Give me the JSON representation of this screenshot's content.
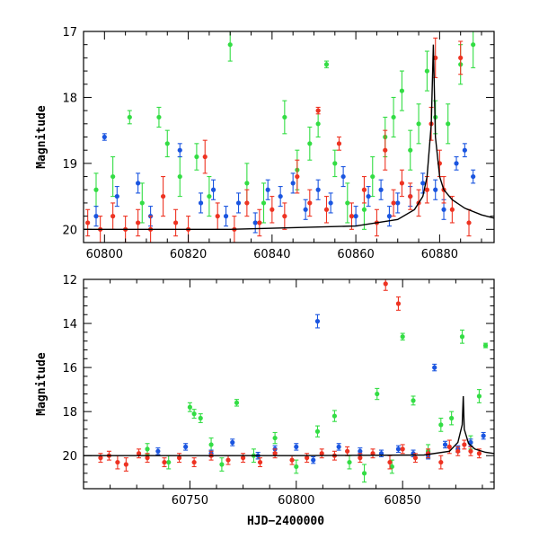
{
  "chart_data": [
    {
      "type": "scatter",
      "title": "",
      "xlabel": "",
      "ylabel": "Magnitude",
      "xlim": [
        60795,
        60893
      ],
      "ylim": [
        20.2,
        17.0
      ],
      "y_inverted": true,
      "xticks": [
        60800,
        60820,
        60840,
        60860,
        60880
      ],
      "yticks": [
        17,
        18,
        19,
        20
      ],
      "colors": {
        "blue": "#1a55e0",
        "green": "#33dd44",
        "red": "#ee3322"
      },
      "series": [
        {
          "color": "#33dd44",
          "x": [
            60798,
            60802,
            60806,
            60809,
            60813,
            60815,
            60818,
            60822,
            60825,
            60830,
            60834,
            60838,
            60843,
            60846,
            60849,
            60851,
            60853,
            60855,
            60858,
            60862,
            60864,
            60867,
            60869,
            60871,
            60873,
            60875,
            60877,
            60879,
            60882,
            60885,
            60888
          ],
          "y": [
            19.4,
            19.2,
            18.3,
            19.6,
            18.3,
            18.7,
            19.2,
            18.9,
            19.5,
            17.2,
            19.3,
            19.6,
            18.3,
            19.1,
            18.7,
            18.4,
            17.5,
            19.0,
            19.6,
            19.7,
            19.2,
            18.6,
            18.3,
            17.9,
            18.8,
            18.4,
            17.6,
            18.3,
            18.4,
            17.5,
            17.2
          ],
          "err": [
            0.25,
            0.3,
            0.1,
            0.3,
            0.15,
            0.2,
            0.3,
            0.2,
            0.3,
            0.25,
            0.3,
            0.3,
            0.25,
            0.3,
            0.25,
            0.2,
            0.05,
            0.2,
            0.3,
            0.3,
            0.3,
            0.3,
            0.3,
            0.3,
            0.3,
            0.3,
            0.3,
            0.25,
            0.3,
            0.3,
            0.35
          ]
        },
        {
          "color": "#1a55e0",
          "x": [
            60798,
            60800,
            60803,
            60808,
            60811,
            60818,
            60823,
            60826,
            60829,
            60832,
            60836,
            60839,
            60842,
            60845,
            60848,
            60851,
            60854,
            60857,
            60860,
            60863,
            60866,
            60868,
            60870,
            60873,
            60876,
            60879,
            60881,
            60884,
            60886,
            60888
          ],
          "y": [
            19.8,
            18.6,
            19.5,
            19.3,
            19.8,
            18.8,
            19.6,
            19.4,
            19.8,
            19.6,
            19.9,
            19.4,
            19.5,
            19.3,
            19.7,
            19.4,
            19.6,
            19.2,
            19.8,
            19.5,
            19.4,
            19.8,
            19.6,
            19.5,
            19.3,
            19.4,
            19.7,
            19.0,
            18.8,
            19.2
          ],
          "err": [
            0.15,
            0.05,
            0.15,
            0.15,
            0.15,
            0.1,
            0.15,
            0.15,
            0.15,
            0.15,
            0.15,
            0.15,
            0.15,
            0.15,
            0.15,
            0.15,
            0.15,
            0.15,
            0.15,
            0.15,
            0.15,
            0.15,
            0.15,
            0.15,
            0.15,
            0.15,
            0.15,
            0.1,
            0.1,
            0.1
          ]
        },
        {
          "color": "#ee3322",
          "x": [
            60796,
            60799,
            60802,
            60805,
            60808,
            60811,
            60814,
            60817,
            60820,
            60824,
            60827,
            60831,
            60834,
            60837,
            60840,
            60843,
            60846,
            60849,
            60851,
            60853,
            60856,
            60859,
            60862,
            60865,
            60867,
            60869,
            60871,
            60873,
            60875,
            60877,
            60878,
            60879,
            60880,
            60881,
            60883,
            60885,
            60887
          ],
          "y": [
            19.9,
            20.0,
            19.8,
            20.0,
            19.9,
            20.0,
            19.5,
            19.9,
            20.0,
            18.9,
            19.8,
            20.0,
            19.6,
            19.9,
            19.7,
            19.8,
            19.2,
            19.6,
            18.2,
            19.7,
            18.7,
            19.8,
            19.4,
            19.9,
            18.8,
            19.6,
            19.3,
            19.5,
            19.6,
            19.4,
            18.4,
            17.4,
            19.0,
            19.4,
            19.7,
            17.4,
            19.9
          ],
          "err": [
            0.2,
            0.2,
            0.2,
            0.2,
            0.2,
            0.2,
            0.3,
            0.2,
            0.2,
            0.25,
            0.2,
            0.2,
            0.2,
            0.2,
            0.2,
            0.2,
            0.25,
            0.2,
            0.05,
            0.2,
            0.1,
            0.2,
            0.2,
            0.2,
            0.3,
            0.2,
            0.2,
            0.2,
            0.2,
            0.2,
            0.25,
            0.3,
            0.2,
            0.2,
            0.2,
            0.25,
            0.2
          ]
        }
      ],
      "model_curve": {
        "x": [
          60795,
          60830,
          60860,
          60870,
          60874,
          60876,
          60877,
          60878,
          60878.5,
          60879,
          60880,
          60881,
          60883,
          60886,
          60890,
          60893
        ],
        "y": [
          20.0,
          20.0,
          19.95,
          19.85,
          19.7,
          19.5,
          19.2,
          18.4,
          17.2,
          18.6,
          19.2,
          19.4,
          19.55,
          19.68,
          19.78,
          19.83
        ]
      }
    },
    {
      "type": "scatter",
      "title": "",
      "xlabel": "HJD−2400000",
      "ylabel": "Magnitude",
      "xlim": [
        60700,
        60893
      ],
      "ylim": [
        21.5,
        12.0
      ],
      "y_inverted": true,
      "xticks": [
        60750,
        60800,
        60850
      ],
      "yticks": [
        12,
        14,
        16,
        18,
        20
      ],
      "colors": {
        "blue": "#1a55e0",
        "green": "#33dd44",
        "red": "#ee3322"
      },
      "series": [
        {
          "color": "#33dd44",
          "x": [
            60730,
            60740,
            60750,
            60752,
            60755,
            60760,
            60765,
            60772,
            60780,
            60790,
            60800,
            60810,
            60818,
            60825,
            60832,
            60838,
            60845,
            60850,
            60855,
            60862,
            60868,
            60873,
            60878,
            60882,
            60886,
            60889
          ],
          "y": [
            19.7,
            20.3,
            17.8,
            18.1,
            18.3,
            19.5,
            20.4,
            17.6,
            20.0,
            19.2,
            20.5,
            18.9,
            18.2,
            20.3,
            20.8,
            17.2,
            20.5,
            14.6,
            17.5,
            19.8,
            18.6,
            18.3,
            14.6,
            19.4,
            17.3,
            15.0
          ],
          "err": [
            0.25,
            0.3,
            0.2,
            0.2,
            0.2,
            0.3,
            0.3,
            0.15,
            0.3,
            0.25,
            0.3,
            0.25,
            0.25,
            0.3,
            0.4,
            0.25,
            0.3,
            0.15,
            0.2,
            0.3,
            0.3,
            0.3,
            0.3,
            0.3,
            0.3,
            0.1
          ]
        },
        {
          "color": "#1a55e0",
          "x": [
            60735,
            60748,
            60760,
            60770,
            60782,
            60790,
            60800,
            60808,
            60810,
            60820,
            60830,
            60840,
            60848,
            60855,
            60862,
            60865,
            60870,
            60876,
            60882,
            60888
          ],
          "y": [
            19.8,
            19.6,
            19.9,
            19.4,
            20.0,
            19.7,
            19.6,
            20.2,
            13.9,
            19.6,
            19.8,
            19.9,
            19.7,
            19.9,
            20.0,
            16.0,
            19.5,
            19.7,
            19.4,
            19.1
          ],
          "err": [
            0.15,
            0.15,
            0.15,
            0.15,
            0.15,
            0.15,
            0.15,
            0.15,
            0.3,
            0.15,
            0.15,
            0.15,
            0.15,
            0.15,
            0.15,
            0.15,
            0.15,
            0.15,
            0.15,
            0.15
          ]
        },
        {
          "color": "#ee3322",
          "x": [
            60708,
            60712,
            60716,
            60720,
            60726,
            60730,
            60738,
            60745,
            60752,
            60760,
            60768,
            60775,
            60783,
            60790,
            60798,
            60805,
            60812,
            60818,
            60824,
            60830,
            60836,
            60842,
            60844,
            60848,
            60850,
            60856,
            60862,
            60868,
            60872,
            60876,
            60879,
            60882,
            60886
          ],
          "y": [
            20.1,
            20.0,
            20.3,
            20.4,
            19.9,
            20.1,
            20.3,
            20.1,
            20.3,
            20.0,
            20.2,
            20.1,
            20.3,
            19.9,
            20.2,
            20.1,
            19.9,
            20.0,
            19.8,
            20.1,
            19.9,
            12.2,
            20.3,
            13.1,
            19.7,
            20.1,
            19.9,
            20.3,
            19.6,
            19.8,
            19.5,
            19.8,
            19.9
          ],
          "err": [
            0.2,
            0.2,
            0.3,
            0.3,
            0.2,
            0.2,
            0.2,
            0.2,
            0.2,
            0.2,
            0.2,
            0.2,
            0.2,
            0.2,
            0.2,
            0.2,
            0.2,
            0.2,
            0.2,
            0.2,
            0.2,
            0.3,
            0.3,
            0.3,
            0.2,
            0.2,
            0.2,
            0.3,
            0.3,
            0.2,
            0.2,
            0.2,
            0.2
          ]
        }
      ],
      "model_curve": {
        "x": [
          60700,
          60800,
          60860,
          60872,
          60876,
          60878,
          60878.5,
          60879,
          60881,
          60884,
          60889,
          60893
        ],
        "y": [
          20.0,
          20.0,
          19.97,
          19.8,
          19.4,
          18.6,
          17.3,
          18.8,
          19.45,
          19.7,
          19.85,
          19.9
        ]
      }
    }
  ]
}
